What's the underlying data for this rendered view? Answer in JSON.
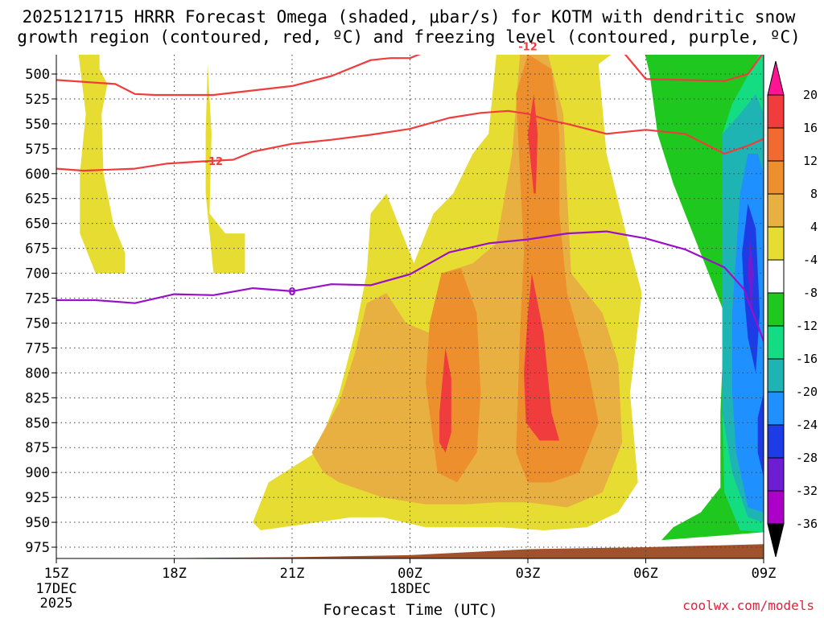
{
  "title": {
    "line1": "2025121715 HRRR Forecast Omega (shaded, μbar/s) for KOTM with dendritic snow",
    "line2": "growth region (contoured, red, ºC) and freezing level (contoured, purple, ºC)"
  },
  "credit": "coolwx.com/models",
  "colors": {
    "red_contour": "#f03c3c",
    "purple_contour": "#9a10c8",
    "terrain": "#a0522d",
    "grid": "#555555"
  },
  "chart_data": {
    "type": "heatmap",
    "title": "2025121715 HRRR Forecast Omega (shaded, μbar/s) for KOTM with dendritic snow growth region (contoured, red, ºC) and freezing level (contoured, purple, ºC)",
    "xlabel": "Forecast Time (UTC)",
    "ylabel": "",
    "x_ticks": [
      {
        "hour": 0,
        "label": "15Z",
        "sub1": "17DEC",
        "sub2": "2025"
      },
      {
        "hour": 3,
        "label": "18Z",
        "sub1": "",
        "sub2": ""
      },
      {
        "hour": 6,
        "label": "21Z",
        "sub1": "",
        "sub2": ""
      },
      {
        "hour": 9,
        "label": "00Z",
        "sub1": "18DEC",
        "sub2": ""
      },
      {
        "hour": 12,
        "label": "03Z",
        "sub1": "",
        "sub2": ""
      },
      {
        "hour": 15,
        "label": "06Z",
        "sub1": "",
        "sub2": ""
      },
      {
        "hour": 18,
        "label": "09Z",
        "sub1": "",
        "sub2": ""
      }
    ],
    "xlim_hours": [
      0,
      18
    ],
    "y_ticks_hpa": [
      500,
      525,
      550,
      575,
      600,
      625,
      650,
      675,
      700,
      725,
      750,
      775,
      800,
      825,
      850,
      875,
      900,
      925,
      950,
      975
    ],
    "ylim_hpa": [
      475,
      995
    ],
    "grid": true,
    "colorbar": {
      "levels": [
        -36,
        -32,
        -28,
        -24,
        -20,
        -16,
        -12,
        -8,
        -4,
        4,
        8,
        12,
        16,
        20
      ],
      "labels": [
        "20",
        "16",
        "12",
        "8",
        "4",
        "-4",
        "-8",
        "-12",
        "-16",
        "-20",
        "-24",
        "-28",
        "-32",
        "-36"
      ],
      "colors_top_to_bottom": [
        "#ff1493",
        "#f03c3c",
        "#f06a32",
        "#ee8f2e",
        "#e8b040",
        "#e6dc32",
        "#ffffff",
        "#1ec81e",
        "#14dc82",
        "#1eb4b4",
        "#1e90ff",
        "#1e3ce6",
        "#6e1ed2",
        "#aa00c8",
        "#a0a0a0",
        "#000000"
      ]
    },
    "omega_regions": [
      {
        "level": 4,
        "color": "#e6dc32",
        "points": [
          [
            0.55,
            475
          ],
          [
            1.1,
            475
          ],
          [
            1.1,
            495
          ],
          [
            1.3,
            510
          ],
          [
            1.15,
            540
          ],
          [
            1.2,
            600
          ],
          [
            1.45,
            650
          ],
          [
            1.75,
            680
          ],
          [
            1.75,
            700
          ],
          [
            1.0,
            700
          ],
          [
            0.6,
            660
          ],
          [
            0.6,
            600
          ],
          [
            0.75,
            540
          ]
        ]
      },
      {
        "level": 4,
        "color": "#e6dc32",
        "points": [
          [
            3.85,
            490
          ],
          [
            3.95,
            560
          ],
          [
            3.9,
            640
          ],
          [
            4.3,
            660
          ],
          [
            4.8,
            660
          ],
          [
            4.8,
            700
          ],
          [
            4.0,
            700
          ],
          [
            3.8,
            620
          ],
          [
            3.8,
            560
          ]
        ]
      },
      {
        "level": 4,
        "color": "#e6dc32",
        "points": [
          [
            5.0,
            950
          ],
          [
            5.4,
            910
          ],
          [
            6.0,
            895
          ],
          [
            6.6,
            880
          ],
          [
            7.2,
            820
          ],
          [
            7.6,
            760
          ],
          [
            7.9,
            700
          ],
          [
            8.0,
            640
          ],
          [
            8.4,
            620
          ],
          [
            8.8,
            660
          ],
          [
            9.1,
            690
          ],
          [
            9.6,
            640
          ],
          [
            10.1,
            620
          ],
          [
            10.6,
            580
          ],
          [
            11.0,
            560
          ],
          [
            11.2,
            480
          ],
          [
            11.4,
            475
          ],
          [
            12.3,
            475
          ],
          [
            14.3,
            475
          ],
          [
            13.8,
            490
          ],
          [
            14.0,
            580
          ],
          [
            14.5,
            660
          ],
          [
            14.9,
            720
          ],
          [
            14.6,
            820
          ],
          [
            14.8,
            910
          ],
          [
            14.3,
            940
          ],
          [
            13.5,
            955
          ],
          [
            12.4,
            958
          ],
          [
            11.3,
            955
          ],
          [
            10.2,
            955
          ],
          [
            9.4,
            955
          ],
          [
            8.3,
            945
          ],
          [
            7.5,
            945
          ],
          [
            6.3,
            952
          ],
          [
            5.2,
            958
          ]
        ]
      },
      {
        "level": 8,
        "color": "#e8b040",
        "points": [
          [
            6.5,
            880
          ],
          [
            7.2,
            830
          ],
          [
            7.6,
            780
          ],
          [
            7.9,
            730
          ],
          [
            8.4,
            720
          ],
          [
            8.9,
            750
          ],
          [
            9.5,
            760
          ],
          [
            9.8,
            700
          ],
          [
            10.6,
            690
          ],
          [
            11.2,
            670
          ],
          [
            11.6,
            580
          ],
          [
            11.8,
            480
          ],
          [
            12.5,
            478
          ],
          [
            12.9,
            540
          ],
          [
            13.0,
            620
          ],
          [
            13.1,
            700
          ],
          [
            13.9,
            740
          ],
          [
            14.3,
            790
          ],
          [
            14.4,
            870
          ],
          [
            13.9,
            920
          ],
          [
            13.0,
            935
          ],
          [
            12.0,
            930
          ],
          [
            11.2,
            930
          ],
          [
            10.4,
            932
          ],
          [
            9.4,
            932
          ],
          [
            8.3,
            925
          ],
          [
            7.2,
            910
          ],
          [
            6.8,
            900
          ]
        ]
      },
      {
        "level": 12,
        "color": "#ee8f2e",
        "points": [
          [
            9.4,
            810
          ],
          [
            9.5,
            750
          ],
          [
            9.8,
            700
          ],
          [
            10.3,
            695
          ],
          [
            10.7,
            740
          ],
          [
            10.8,
            820
          ],
          [
            10.7,
            880
          ],
          [
            10.2,
            910
          ],
          [
            9.7,
            900
          ]
        ]
      },
      {
        "level": 12,
        "color": "#ee8f2e",
        "points": [
          [
            11.7,
            520
          ],
          [
            12.0,
            480
          ],
          [
            12.6,
            495
          ],
          [
            12.8,
            560
          ],
          [
            12.8,
            640
          ],
          [
            13.0,
            720
          ],
          [
            13.5,
            790
          ],
          [
            13.8,
            850
          ],
          [
            13.3,
            900
          ],
          [
            12.6,
            910
          ],
          [
            12.0,
            910
          ],
          [
            11.7,
            880
          ],
          [
            11.8,
            760
          ],
          [
            11.9,
            680
          ],
          [
            11.8,
            600
          ]
        ]
      },
      {
        "level": 16,
        "color": "#f03c3c",
        "points": [
          [
            9.75,
            840
          ],
          [
            9.9,
            775
          ],
          [
            10.05,
            805
          ],
          [
            10.05,
            860
          ],
          [
            9.9,
            880
          ],
          [
            9.75,
            870
          ]
        ]
      },
      {
        "level": 16,
        "color": "#f03c3c",
        "points": [
          [
            12.15,
            620
          ],
          [
            12.0,
            560
          ],
          [
            12.15,
            520
          ],
          [
            12.25,
            560
          ],
          [
            12.2,
            620
          ]
        ]
      },
      {
        "level": 16,
        "color": "#f03c3c",
        "points": [
          [
            11.9,
            800
          ],
          [
            12.0,
            740
          ],
          [
            12.1,
            700
          ],
          [
            12.4,
            760
          ],
          [
            12.6,
            840
          ],
          [
            12.8,
            868
          ],
          [
            12.3,
            868
          ],
          [
            11.95,
            850
          ]
        ]
      },
      {
        "level": -4,
        "color": "#1ec81e",
        "points": [
          [
            14.95,
            475
          ],
          [
            18.0,
            475
          ],
          [
            18.0,
            960
          ],
          [
            15.4,
            968
          ],
          [
            15.7,
            955
          ],
          [
            16.4,
            940
          ],
          [
            16.9,
            915
          ],
          [
            16.9,
            840
          ],
          [
            17.0,
            740
          ],
          [
            16.6,
            700
          ],
          [
            16.2,
            660
          ],
          [
            15.7,
            610
          ],
          [
            15.3,
            560
          ],
          [
            15.1,
            500
          ]
        ]
      },
      {
        "level": -8,
        "color": "#14dc82",
        "points": [
          [
            17.2,
            530
          ],
          [
            17.9,
            480
          ],
          [
            18.0,
            480
          ],
          [
            18.0,
            960
          ],
          [
            17.4,
            958
          ],
          [
            17.0,
            920
          ],
          [
            16.95,
            840
          ],
          [
            16.95,
            740
          ],
          [
            16.95,
            650
          ],
          [
            16.95,
            560
          ]
        ]
      },
      {
        "level": -12,
        "color": "#1eb4b4",
        "points": [
          [
            16.95,
            560
          ],
          [
            17.4,
            540
          ],
          [
            17.8,
            520
          ],
          [
            18.0,
            540
          ],
          [
            18.0,
            950
          ],
          [
            17.6,
            945
          ],
          [
            17.2,
            900
          ],
          [
            16.95,
            840
          ],
          [
            16.95,
            740
          ],
          [
            16.95,
            650
          ]
        ]
      },
      {
        "level": -16,
        "color": "#1e90ff",
        "points": [
          [
            17.6,
            580
          ],
          [
            17.85,
            580
          ],
          [
            18.0,
            600
          ],
          [
            18.0,
            940
          ],
          [
            17.6,
            935
          ],
          [
            17.3,
            880
          ],
          [
            17.2,
            820
          ],
          [
            17.2,
            740
          ],
          [
            17.3,
            680
          ],
          [
            17.4,
            620
          ]
        ]
      },
      {
        "level": -20,
        "color": "#1e3ce6",
        "points": [
          [
            17.6,
            630
          ],
          [
            17.8,
            655
          ],
          [
            17.9,
            740
          ],
          [
            17.8,
            800
          ],
          [
            17.6,
            765
          ],
          [
            17.5,
            720
          ],
          [
            17.45,
            680
          ]
        ]
      },
      {
        "level": -20,
        "color": "#1e3ce6",
        "points": [
          [
            17.85,
            845
          ],
          [
            18.0,
            820
          ],
          [
            18.0,
            905
          ],
          [
            17.85,
            880
          ]
        ]
      },
      {
        "level": -24,
        "color": "#6e1ed2",
        "points": [
          [
            17.65,
            665
          ],
          [
            17.75,
            700
          ],
          [
            17.7,
            740
          ],
          [
            17.6,
            700
          ]
        ]
      }
    ],
    "dendritic_contours": [
      {
        "value": -12,
        "label": "-12",
        "label_at_hour": 12.0,
        "points": [
          [
            0.0,
            506
          ],
          [
            1.5,
            510
          ],
          [
            2.0,
            520
          ],
          [
            2.5,
            521
          ],
          [
            4.0,
            521
          ],
          [
            6.0,
            512
          ],
          [
            7.0,
            502
          ],
          [
            8.0,
            486
          ],
          [
            8.5,
            484
          ],
          [
            9.0,
            484
          ],
          [
            9.5,
            476
          ],
          [
            10.0,
            472
          ],
          [
            14.3,
            472
          ],
          [
            15.0,
            505
          ],
          [
            16.0,
            506
          ],
          [
            17.0,
            507
          ],
          [
            17.6,
            500
          ],
          [
            18.0,
            478
          ]
        ]
      },
      {
        "value": -12,
        "label": "-12",
        "label_at_hour": 4.0,
        "points": [
          [
            0.0,
            595
          ],
          [
            0.7,
            597
          ],
          [
            2.0,
            595
          ],
          [
            2.8,
            590
          ],
          [
            3.6,
            588
          ],
          [
            4.5,
            586
          ],
          [
            5.0,
            578
          ],
          [
            6.0,
            570
          ],
          [
            7.0,
            566
          ],
          [
            8.0,
            561
          ],
          [
            9.0,
            555
          ],
          [
            10.0,
            544
          ],
          [
            10.8,
            539
          ],
          [
            11.5,
            537
          ],
          [
            12.0,
            540
          ],
          [
            12.5,
            546
          ],
          [
            13.0,
            550
          ],
          [
            14.0,
            560
          ],
          [
            15.0,
            556
          ],
          [
            16.0,
            560
          ],
          [
            17.0,
            580
          ],
          [
            17.6,
            572
          ],
          [
            18.0,
            565
          ]
        ]
      }
    ],
    "freezing_level": {
      "value": 0,
      "label": "0",
      "label_at_hour": 6.0,
      "points": [
        [
          0.0,
          727
        ],
        [
          1.0,
          727
        ],
        [
          2.0,
          730
        ],
        [
          3.0,
          721
        ],
        [
          4.0,
          722
        ],
        [
          5.0,
          715
        ],
        [
          6.0,
          718
        ],
        [
          7.0,
          711
        ],
        [
          8.0,
          712
        ],
        [
          9.0,
          701
        ],
        [
          10.0,
          679
        ],
        [
          11.0,
          670
        ],
        [
          12.0,
          666
        ],
        [
          13.0,
          660
        ],
        [
          14.0,
          658
        ],
        [
          15.0,
          665
        ],
        [
          16.0,
          676
        ],
        [
          17.0,
          694
        ],
        [
          17.5,
          716
        ],
        [
          18.0,
          768
        ]
      ]
    },
    "terrain": {
      "points": [
        [
          0.0,
          987
        ],
        [
          3.0,
          986
        ],
        [
          6.0,
          985
        ],
        [
          9.0,
          983
        ],
        [
          12.0,
          977
        ],
        [
          15.0,
          975
        ],
        [
          18.0,
          972
        ]
      ]
    }
  }
}
